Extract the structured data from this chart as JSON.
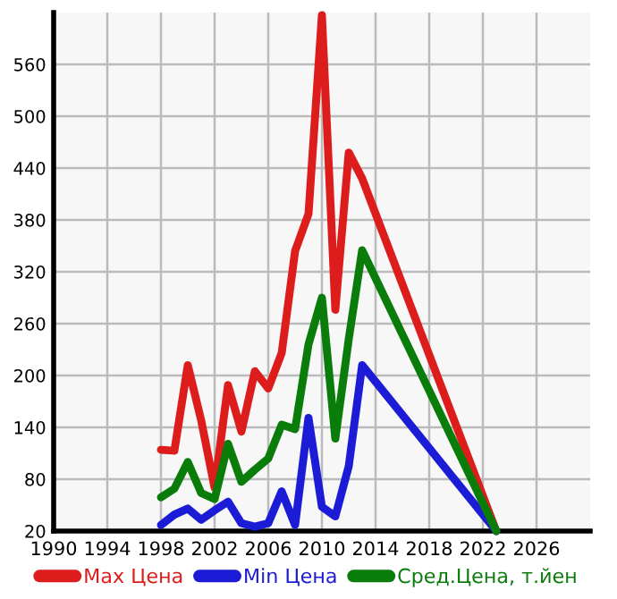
{
  "chart_data": {
    "type": "line",
    "x": [
      1998,
      1999,
      2000,
      2001,
      2002,
      2003,
      2004,
      2005,
      2006,
      2007,
      2008,
      2009,
      2010,
      2011,
      2012,
      2013,
      2023
    ],
    "series": [
      {
        "name": "Max Цена",
        "color": "#dd1c1c",
        "values": [
          114,
          113,
          212,
          148,
          70,
          189,
          135,
          205,
          185,
          226,
          344,
          387,
          617,
          276,
          458,
          428,
          20
        ]
      },
      {
        "name": "Min Цена",
        "color": "#1c1cd6",
        "values": [
          27,
          39,
          46,
          33,
          44,
          54,
          29,
          25,
          29,
          66,
          27,
          151,
          48,
          37,
          95,
          212,
          20
        ]
      },
      {
        "name": "Сред.Цена, т.йен",
        "color": "#0a7c0a",
        "values": [
          59,
          69,
          100,
          64,
          57,
          121,
          77,
          91,
          104,
          143,
          138,
          236,
          290,
          127,
          242,
          345,
          20
        ]
      }
    ],
    "xlim": [
      1990,
      2030
    ],
    "xticks": [
      1990,
      1994,
      1998,
      2002,
      2006,
      2010,
      2014,
      2018,
      2022,
      2026
    ],
    "ylim": [
      20,
      620
    ],
    "yticks": [
      20,
      80,
      140,
      200,
      260,
      320,
      380,
      440,
      500,
      560
    ],
    "grid": true,
    "legend": "bottom",
    "marker": "none",
    "line_style": "solid"
  }
}
